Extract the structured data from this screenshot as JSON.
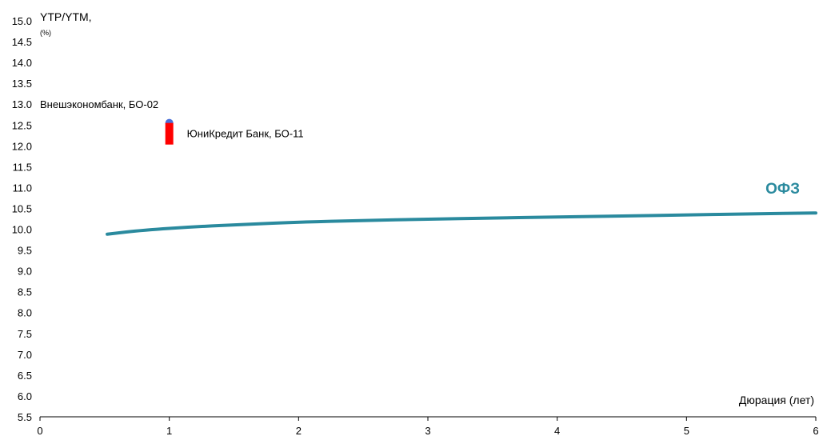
{
  "chart_data": {
    "type": "scatter",
    "ylabel": "YTP/YTM, (%)",
    "xlabel": "Дюрация (лет)",
    "xlim": [
      0,
      6
    ],
    "ylim": [
      5.5,
      15.0
    ],
    "x_ticks": [
      "0",
      "1",
      "2",
      "3",
      "4",
      "5",
      "6"
    ],
    "y_ticks": [
      "5.5",
      "6.0",
      "6.5",
      "7.0",
      "7.5",
      "8.0",
      "8.5",
      "9.0",
      "9.5",
      "10.0",
      "10.5",
      "11.0",
      "11.5",
      "12.0",
      "12.5",
      "13.0",
      "13.5",
      "14.0",
      "14.5",
      "15.0"
    ],
    "grid": false,
    "series": [
      {
        "name": "ОФЗ",
        "kind": "line",
        "color": "#2a8a9e",
        "x": [
          0.52,
          0.8,
          1.2,
          1.6,
          2.0,
          2.5,
          3.0,
          3.5,
          4.0,
          4.5,
          5.0,
          5.5,
          6.0
        ],
        "y": [
          9.88,
          9.98,
          10.06,
          10.12,
          10.17,
          10.21,
          10.24,
          10.27,
          10.29,
          10.32,
          10.34,
          10.37,
          10.39
        ]
      },
      {
        "name": "Внешэкономбанк, БО-02",
        "kind": "point",
        "marker": "circle",
        "color": "#4a6fd8",
        "x": 1.0,
        "y": 12.55
      },
      {
        "name": "ЮниКредит Банк, БО-11",
        "kind": "point",
        "marker": "rect",
        "color": "#ff0000",
        "x": 1.0,
        "y": 12.3
      }
    ]
  }
}
